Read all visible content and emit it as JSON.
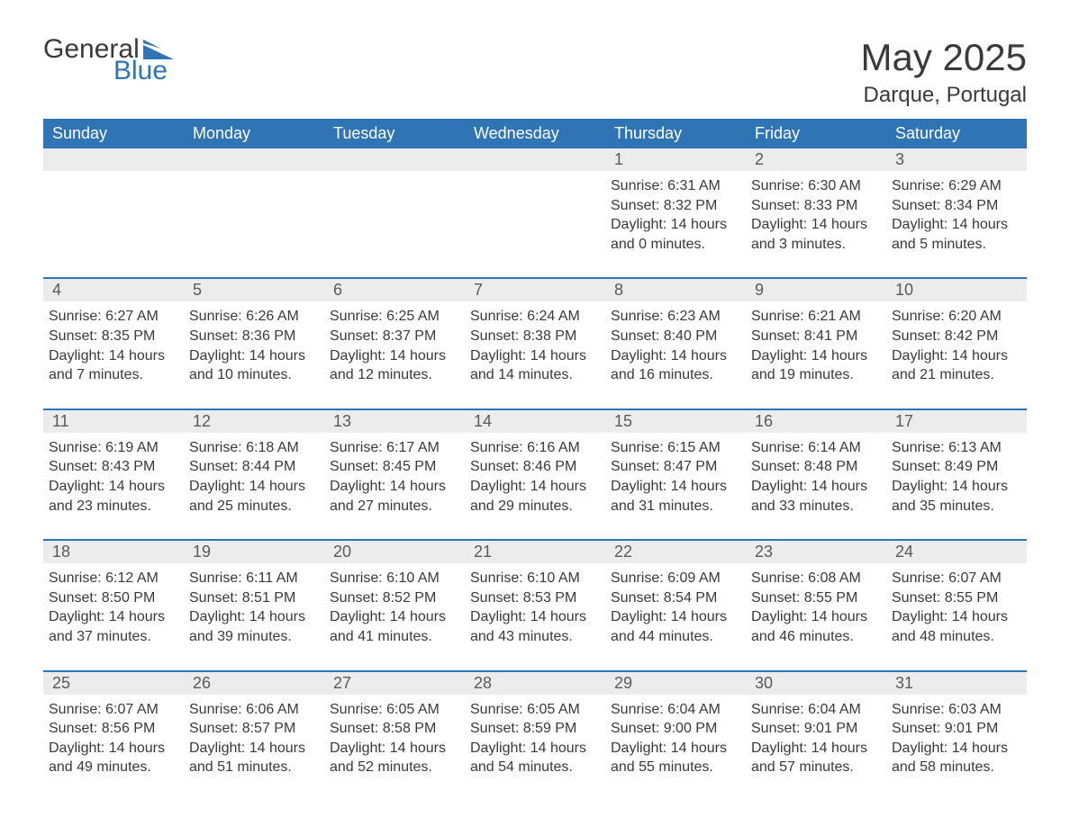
{
  "colors": {
    "header_bg": "#2f74b5",
    "header_text": "#ffffff",
    "daynum_bg": "#ececec",
    "text": "#3a3a3a",
    "accent": "#2f74b5",
    "background": "#ffffff"
  },
  "typography": {
    "title_fontsize": 42,
    "location_fontsize": 24,
    "weekday_fontsize": 18,
    "daynum_fontsize": 18,
    "body_fontsize": 16,
    "font_family": "Arial"
  },
  "logo": {
    "text_top": "General",
    "text_bottom": "Blue",
    "icon_color": "#2f74b5"
  },
  "title": "May 2025",
  "location": "Darque, Portugal",
  "weekdays": [
    "Sunday",
    "Monday",
    "Tuesday",
    "Wednesday",
    "Thursday",
    "Friday",
    "Saturday"
  ],
  "layout": {
    "columns": 7,
    "rows": 5,
    "week_top_border_color": "#2f74b5",
    "week_top_border_width": 2
  },
  "labels": {
    "sunrise": "Sunrise:",
    "sunset": "Sunset:",
    "daylight_prefix": "Daylight:",
    "hours_word": "hours",
    "minutes_suffix": "minutes."
  },
  "weeks": [
    [
      {
        "n": "",
        "sunrise": "",
        "sunset": "",
        "daylight_h": "",
        "daylight_m": ""
      },
      {
        "n": "",
        "sunrise": "",
        "sunset": "",
        "daylight_h": "",
        "daylight_m": ""
      },
      {
        "n": "",
        "sunrise": "",
        "sunset": "",
        "daylight_h": "",
        "daylight_m": ""
      },
      {
        "n": "",
        "sunrise": "",
        "sunset": "",
        "daylight_h": "",
        "daylight_m": ""
      },
      {
        "n": "1",
        "sunrise": "6:31 AM",
        "sunset": "8:32 PM",
        "daylight_h": "14",
        "daylight_m": "0"
      },
      {
        "n": "2",
        "sunrise": "6:30 AM",
        "sunset": "8:33 PM",
        "daylight_h": "14",
        "daylight_m": "3"
      },
      {
        "n": "3",
        "sunrise": "6:29 AM",
        "sunset": "8:34 PM",
        "daylight_h": "14",
        "daylight_m": "5"
      }
    ],
    [
      {
        "n": "4",
        "sunrise": "6:27 AM",
        "sunset": "8:35 PM",
        "daylight_h": "14",
        "daylight_m": "7"
      },
      {
        "n": "5",
        "sunrise": "6:26 AM",
        "sunset": "8:36 PM",
        "daylight_h": "14",
        "daylight_m": "10"
      },
      {
        "n": "6",
        "sunrise": "6:25 AM",
        "sunset": "8:37 PM",
        "daylight_h": "14",
        "daylight_m": "12"
      },
      {
        "n": "7",
        "sunrise": "6:24 AM",
        "sunset": "8:38 PM",
        "daylight_h": "14",
        "daylight_m": "14"
      },
      {
        "n": "8",
        "sunrise": "6:23 AM",
        "sunset": "8:40 PM",
        "daylight_h": "14",
        "daylight_m": "16"
      },
      {
        "n": "9",
        "sunrise": "6:21 AM",
        "sunset": "8:41 PM",
        "daylight_h": "14",
        "daylight_m": "19"
      },
      {
        "n": "10",
        "sunrise": "6:20 AM",
        "sunset": "8:42 PM",
        "daylight_h": "14",
        "daylight_m": "21"
      }
    ],
    [
      {
        "n": "11",
        "sunrise": "6:19 AM",
        "sunset": "8:43 PM",
        "daylight_h": "14",
        "daylight_m": "23"
      },
      {
        "n": "12",
        "sunrise": "6:18 AM",
        "sunset": "8:44 PM",
        "daylight_h": "14",
        "daylight_m": "25"
      },
      {
        "n": "13",
        "sunrise": "6:17 AM",
        "sunset": "8:45 PM",
        "daylight_h": "14",
        "daylight_m": "27"
      },
      {
        "n": "14",
        "sunrise": "6:16 AM",
        "sunset": "8:46 PM",
        "daylight_h": "14",
        "daylight_m": "29"
      },
      {
        "n": "15",
        "sunrise": "6:15 AM",
        "sunset": "8:47 PM",
        "daylight_h": "14",
        "daylight_m": "31"
      },
      {
        "n": "16",
        "sunrise": "6:14 AM",
        "sunset": "8:48 PM",
        "daylight_h": "14",
        "daylight_m": "33"
      },
      {
        "n": "17",
        "sunrise": "6:13 AM",
        "sunset": "8:49 PM",
        "daylight_h": "14",
        "daylight_m": "35"
      }
    ],
    [
      {
        "n": "18",
        "sunrise": "6:12 AM",
        "sunset": "8:50 PM",
        "daylight_h": "14",
        "daylight_m": "37"
      },
      {
        "n": "19",
        "sunrise": "6:11 AM",
        "sunset": "8:51 PM",
        "daylight_h": "14",
        "daylight_m": "39"
      },
      {
        "n": "20",
        "sunrise": "6:10 AM",
        "sunset": "8:52 PM",
        "daylight_h": "14",
        "daylight_m": "41"
      },
      {
        "n": "21",
        "sunrise": "6:10 AM",
        "sunset": "8:53 PM",
        "daylight_h": "14",
        "daylight_m": "43"
      },
      {
        "n": "22",
        "sunrise": "6:09 AM",
        "sunset": "8:54 PM",
        "daylight_h": "14",
        "daylight_m": "44"
      },
      {
        "n": "23",
        "sunrise": "6:08 AM",
        "sunset": "8:55 PM",
        "daylight_h": "14",
        "daylight_m": "46"
      },
      {
        "n": "24",
        "sunrise": "6:07 AM",
        "sunset": "8:55 PM",
        "daylight_h": "14",
        "daylight_m": "48"
      }
    ],
    [
      {
        "n": "25",
        "sunrise": "6:07 AM",
        "sunset": "8:56 PM",
        "daylight_h": "14",
        "daylight_m": "49"
      },
      {
        "n": "26",
        "sunrise": "6:06 AM",
        "sunset": "8:57 PM",
        "daylight_h": "14",
        "daylight_m": "51"
      },
      {
        "n": "27",
        "sunrise": "6:05 AM",
        "sunset": "8:58 PM",
        "daylight_h": "14",
        "daylight_m": "52"
      },
      {
        "n": "28",
        "sunrise": "6:05 AM",
        "sunset": "8:59 PM",
        "daylight_h": "14",
        "daylight_m": "54"
      },
      {
        "n": "29",
        "sunrise": "6:04 AM",
        "sunset": "9:00 PM",
        "daylight_h": "14",
        "daylight_m": "55"
      },
      {
        "n": "30",
        "sunrise": "6:04 AM",
        "sunset": "9:01 PM",
        "daylight_h": "14",
        "daylight_m": "57"
      },
      {
        "n": "31",
        "sunrise": "6:03 AM",
        "sunset": "9:01 PM",
        "daylight_h": "14",
        "daylight_m": "58"
      }
    ]
  ]
}
